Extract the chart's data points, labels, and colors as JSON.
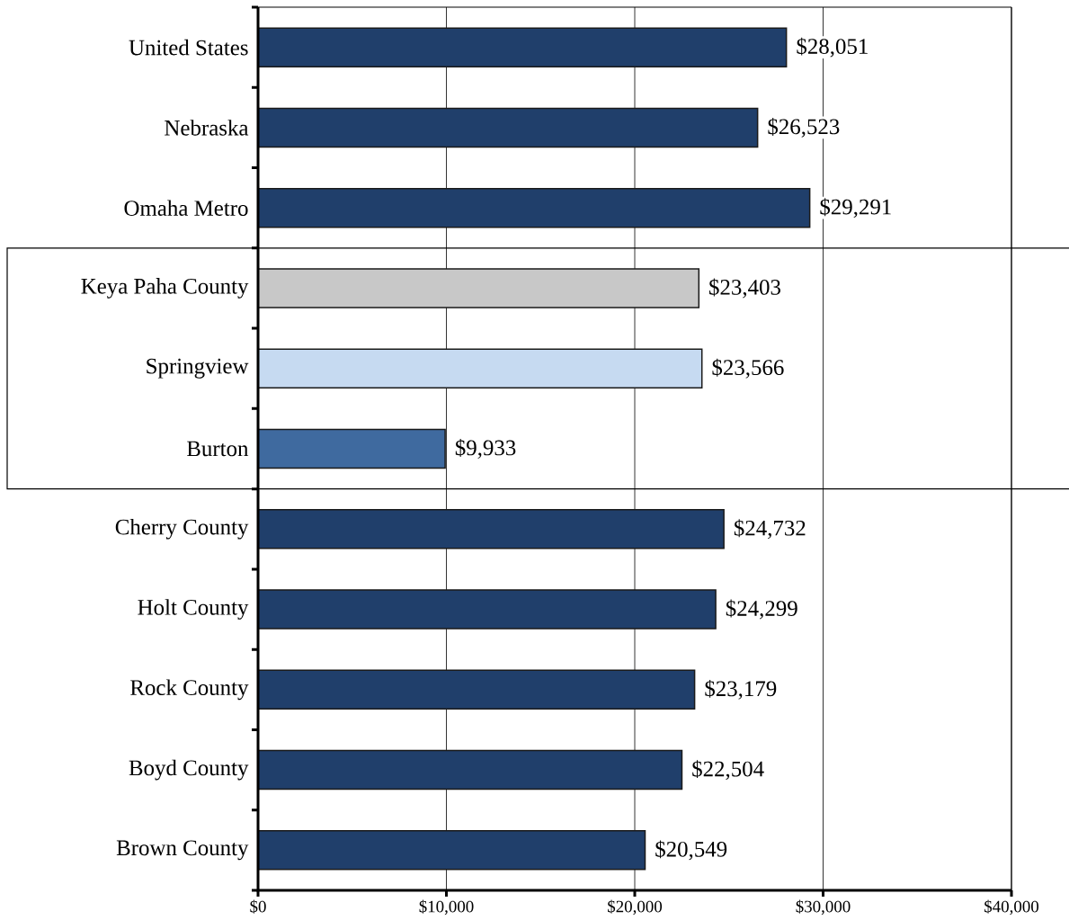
{
  "chart_data": {
    "type": "bar",
    "orientation": "horizontal",
    "categories": [
      "United States",
      "Nebraska",
      "Omaha Metro",
      "Keya Paha County",
      "Springview",
      "Burton",
      "Cherry County",
      "Holt County",
      "Rock County",
      "Boyd County",
      "Brown County"
    ],
    "values": [
      28051,
      26523,
      29291,
      23403,
      23566,
      9933,
      24732,
      24299,
      23179,
      22504,
      20549
    ],
    "colors": [
      "#203f6b",
      "#203f6b",
      "#203f6b",
      "#c8c8c8",
      "#c6daf1",
      "#3f6a9f",
      "#203f6b",
      "#203f6b",
      "#203f6b",
      "#203f6b",
      "#203f6b"
    ],
    "value_labels": [
      "$28,051",
      "$26,523",
      "$29,291",
      "$23,403",
      "$23,566",
      "$9,933",
      "$24,732",
      "$24,299",
      "$23,179",
      "$22,504",
      "$20,549"
    ],
    "xlim": [
      0,
      40000
    ],
    "xticks": [
      {
        "value": 0,
        "label": "$0"
      },
      {
        "value": 10000,
        "label": "$10,000"
      },
      {
        "value": 20000,
        "label": "$20,000"
      },
      {
        "value": 30000,
        "label": "$30,000"
      },
      {
        "value": 40000,
        "label": "$40,000"
      }
    ],
    "grid": "x",
    "bands": [
      {
        "axis": "y",
        "from": "Keya Paha County",
        "to": "Burton",
        "color": "#ffffff"
      }
    ]
  }
}
